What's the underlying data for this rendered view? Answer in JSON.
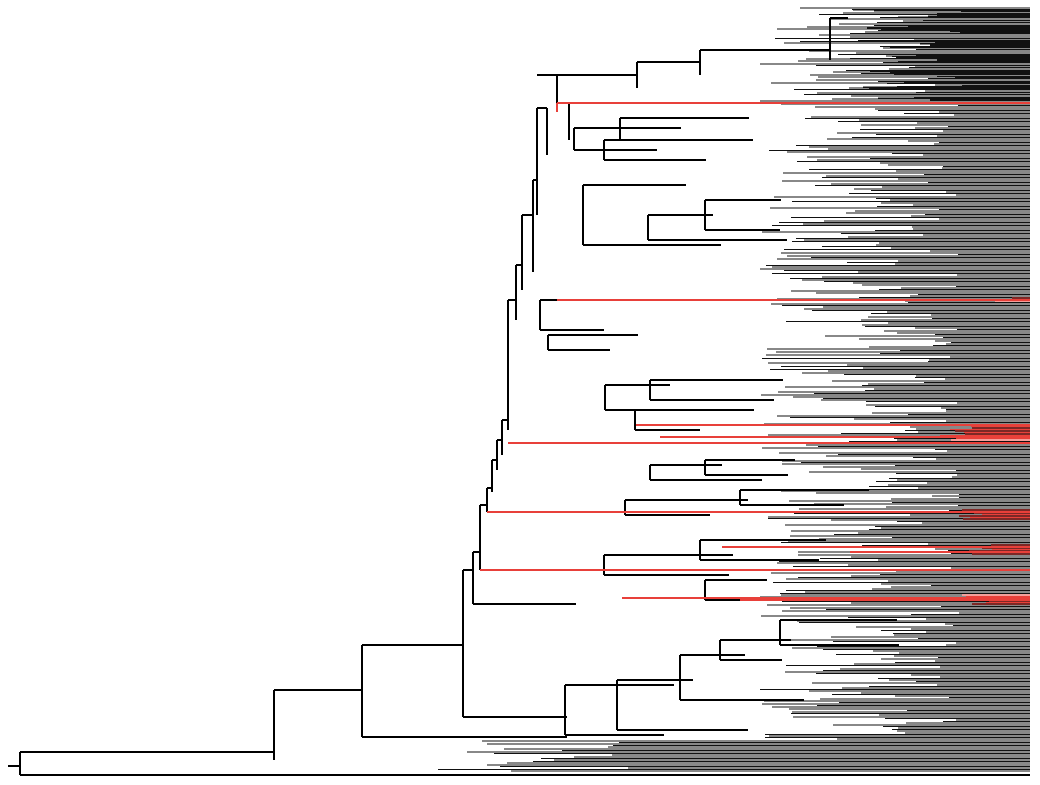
{
  "figure": {
    "kind": "phylogenetic-tree",
    "orientation": "rooted-left-to-right",
    "tip_label_color": "#111111",
    "branch_color": "#000000",
    "highlight_color": "#e8403a",
    "highlighted_clades": 7
  }
}
